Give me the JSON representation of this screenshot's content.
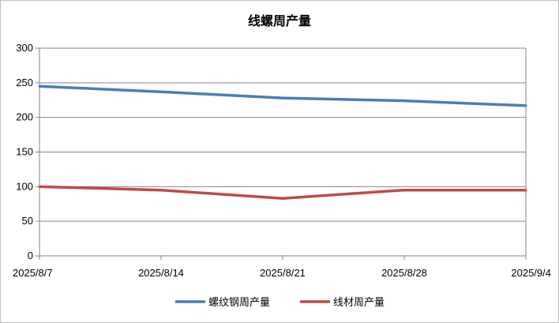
{
  "chart_data": {
    "type": "line",
    "title": "线螺周产量",
    "xlabel": "",
    "ylabel": "",
    "categories": [
      "2025/8/7",
      "2025/8/14",
      "2025/8/21",
      "2025/8/28",
      "2025/9/4"
    ],
    "ylim": [
      0,
      300
    ],
    "yticks": [
      0,
      50,
      100,
      150,
      200,
      250,
      300
    ],
    "grid": true,
    "legend_position": "bottom",
    "series": [
      {
        "name": "螺纹钢周产量",
        "color": "#4a7ebb",
        "values": [
          245,
          237,
          228,
          224,
          217
        ]
      },
      {
        "name": "线材周产量",
        "color": "#be4b48",
        "values": [
          100,
          95,
          83,
          95,
          95
        ]
      }
    ]
  }
}
